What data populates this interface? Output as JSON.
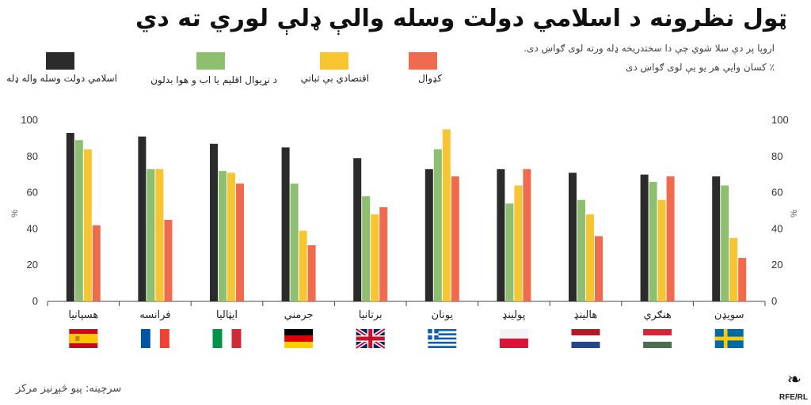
{
  "title": "ټول نظرونه د اسلامي دولت وسله والې ډلې لوري ته دي",
  "subtitle_lines": [
    "اروپا پر دې سلا شوي چې دا سختدریخه ډله ورته لوی ګواښ دی.",
    "٪ کسان وايي هر يو يې لوی ګواښ دی"
  ],
  "source": "سرچینه: پیو څېړنيز مرکز",
  "logo": "RFE/RL",
  "colors": {
    "isis": "#2b2b2b",
    "climate": "#8dbf6f",
    "economy": "#f7c531",
    "cyber": "#f06b4e"
  },
  "chart_data": {
    "type": "bar",
    "categories": [
      "هسپانیا",
      "فرانسه",
      "ایټالیا",
      "جرمني",
      "برتانیا",
      "یونان",
      "پولینډ",
      "هالینډ",
      "هنګري",
      "سویډن"
    ],
    "flags": [
      "spain",
      "france",
      "italy",
      "germany",
      "uk",
      "greece",
      "poland",
      "netherlands",
      "hungary",
      "sweden"
    ],
    "series": [
      {
        "name": "اسلامي دولت وسله واله ډله",
        "color": "#2b2b2b",
        "values": [
          93,
          91,
          87,
          85,
          79,
          73,
          73,
          71,
          70,
          69
        ]
      },
      {
        "name": "د نړیوال اقلیم یا اب و هوا بدلون",
        "color": "#8dbf6f",
        "values": [
          89,
          73,
          72,
          65,
          58,
          84,
          54,
          56,
          66,
          64
        ]
      },
      {
        "name": "اقتصادي بې ثباتي",
        "color": "#f7c531",
        "values": [
          84,
          73,
          71,
          39,
          48,
          95,
          64,
          48,
          56,
          35
        ]
      },
      {
        "name": "کډوال",
        "color": "#f06b4e",
        "values": [
          42,
          45,
          65,
          31,
          52,
          69,
          73,
          36,
          69,
          24
        ]
      }
    ],
    "ylim": [
      0,
      100
    ],
    "yticks": [
      0,
      20,
      40,
      60,
      80,
      100
    ],
    "ylabel": "%",
    "grid": false
  }
}
